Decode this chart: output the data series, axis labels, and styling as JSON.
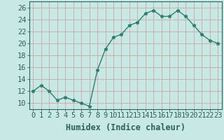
{
  "x": [
    0,
    1,
    2,
    3,
    4,
    5,
    6,
    7,
    8,
    9,
    10,
    11,
    12,
    13,
    14,
    15,
    16,
    17,
    18,
    19,
    20,
    21,
    22,
    23
  ],
  "y": [
    12,
    13,
    12,
    10.5,
    11,
    10.5,
    10,
    9.5,
    15.5,
    19,
    21,
    21.5,
    23,
    23.5,
    25,
    25.5,
    24.5,
    24.5,
    25.5,
    24.5,
    23,
    21.5,
    20.5,
    20
  ],
  "xlabel": "Humidex (Indice chaleur)",
  "ylabel": "",
  "ylim": [
    9,
    27
  ],
  "xlim": [
    -0.5,
    23.5
  ],
  "yticks": [
    10,
    12,
    14,
    16,
    18,
    20,
    22,
    24,
    26
  ],
  "xticks": [
    0,
    1,
    2,
    3,
    4,
    5,
    6,
    7,
    8,
    9,
    10,
    11,
    12,
    13,
    14,
    15,
    16,
    17,
    18,
    19,
    20,
    21,
    22,
    23
  ],
  "line_color": "#2e7d6e",
  "marker": "*",
  "bg_color": "#c8e8e4",
  "grid_color": "#c8a8a8",
  "tick_color": "#2e6060",
  "tick_label_fontsize": 7.5,
  "xlabel_fontsize": 8.5
}
